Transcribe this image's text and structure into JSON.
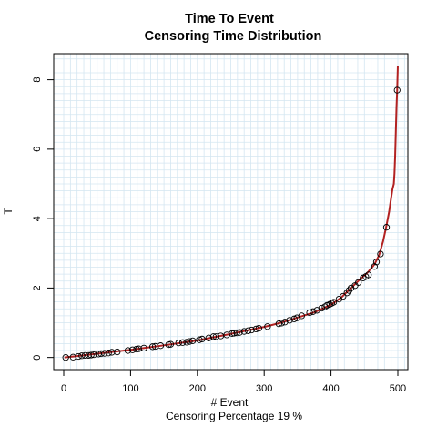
{
  "chart_data": {
    "type": "scatter",
    "title": "Time To Event",
    "subtitle": "Censoring Time Distribution",
    "xlabel": "# Event",
    "ylabel": "T",
    "footnote": "Censoring Percentage  19 %",
    "xlim": [
      -15,
      515
    ],
    "ylim": [
      -0.35,
      8.75
    ],
    "xticks": [
      0,
      100,
      200,
      300,
      400,
      500
    ],
    "yticks": [
      0,
      2,
      4,
      6,
      8
    ],
    "grid": true,
    "colors": {
      "grid": "#d4e6f1",
      "curve": "#b22222",
      "points": "#000000"
    },
    "series": [
      {
        "style": "line",
        "x": [
          1,
          20,
          50,
          100,
          150,
          200,
          250,
          300,
          325,
          350,
          375,
          400,
          415,
          430,
          445,
          455,
          465,
          472,
          478,
          483,
          487,
          490,
          492,
          494,
          495,
          496,
          497,
          498,
          499,
          500
        ],
        "y": [
          0.0,
          0.04,
          0.11,
          0.22,
          0.35,
          0.49,
          0.68,
          0.88,
          1.0,
          1.15,
          1.3,
          1.52,
          1.72,
          2.0,
          2.28,
          2.45,
          2.68,
          2.95,
          3.35,
          3.8,
          4.2,
          4.6,
          4.85,
          5.0,
          5.3,
          5.8,
          6.5,
          7.2,
          7.7,
          8.4
        ]
      },
      {
        "style": "points",
        "x": [
          3,
          14,
          22,
          27,
          32,
          37,
          41,
          45,
          52,
          56,
          61,
          67,
          72,
          80,
          96,
          103,
          109,
          112,
          120,
          133,
          137,
          145,
          157,
          160,
          172,
          178,
          184,
          188,
          193,
          203,
          207,
          217,
          224,
          228,
          235,
          244,
          252,
          255,
          259,
          263,
          270,
          276,
          281,
          288,
          292,
          305,
          322,
          326,
          331,
          338,
          345,
          349,
          356,
          368,
          373,
          379,
          386,
          391,
          394,
          398,
          401,
          404,
          412,
          418,
          424,
          427,
          430,
          436,
          441,
          448,
          452,
          456,
          465,
          468,
          474,
          483,
          499
        ],
        "y": [
          0.0,
          0.01,
          0.03,
          0.05,
          0.06,
          0.06,
          0.07,
          0.08,
          0.1,
          0.11,
          0.12,
          0.13,
          0.15,
          0.16,
          0.2,
          0.22,
          0.24,
          0.25,
          0.27,
          0.31,
          0.32,
          0.34,
          0.37,
          0.38,
          0.42,
          0.43,
          0.44,
          0.46,
          0.48,
          0.51,
          0.53,
          0.56,
          0.6,
          0.6,
          0.62,
          0.65,
          0.69,
          0.7,
          0.71,
          0.72,
          0.75,
          0.77,
          0.79,
          0.82,
          0.84,
          0.89,
          0.97,
          0.99,
          1.02,
          1.07,
          1.11,
          1.14,
          1.2,
          1.29,
          1.32,
          1.36,
          1.42,
          1.46,
          1.5,
          1.53,
          1.56,
          1.59,
          1.68,
          1.76,
          1.86,
          1.93,
          2.0,
          2.07,
          2.16,
          2.29,
          2.33,
          2.38,
          2.62,
          2.75,
          2.98,
          3.75,
          7.7
        ]
      }
    ]
  }
}
